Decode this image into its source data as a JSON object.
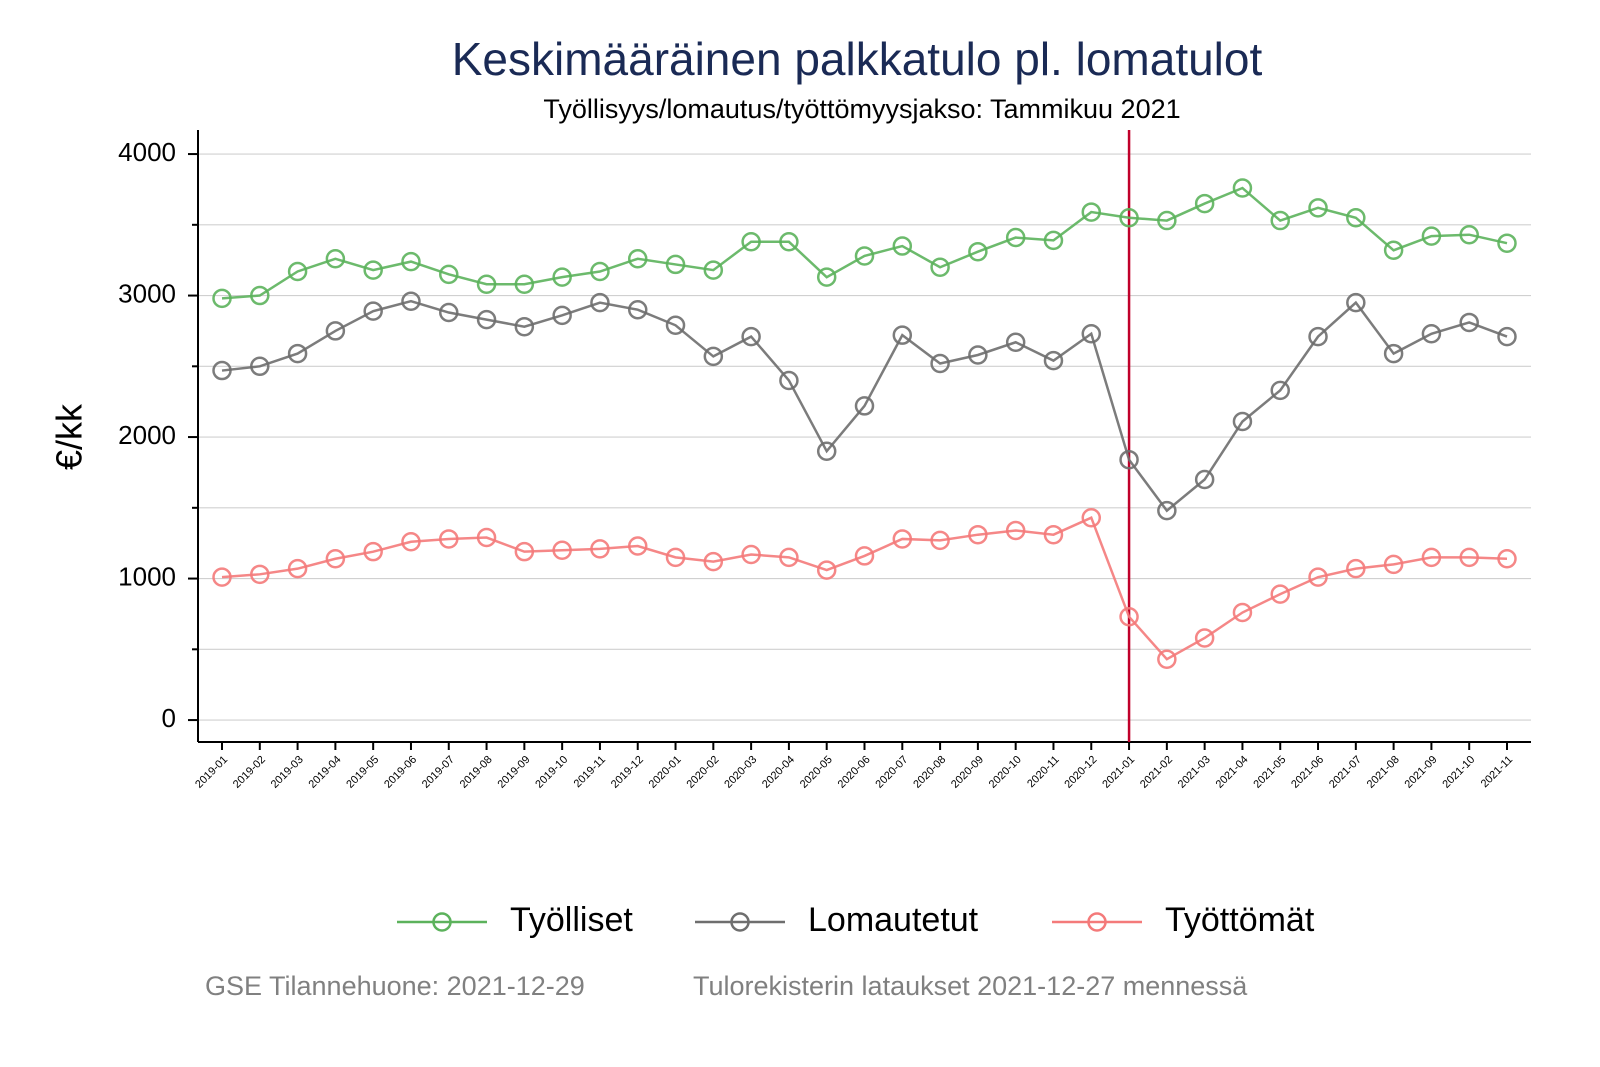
{
  "chart_data": {
    "type": "line",
    "title": "Keskimääräinen palkkatulo pl. lomatulot",
    "subtitle": "Työllisyys/lomautus/työttömyysjakso: Tammikuu 2021",
    "y_label": "€/kk",
    "categories": [
      "2019-01",
      "2019-02",
      "2019-03",
      "2019-04",
      "2019-05",
      "2019-06",
      "2019-07",
      "2019-08",
      "2019-09",
      "2019-10",
      "2019-11",
      "2019-12",
      "2020-01",
      "2020-02",
      "2020-03",
      "2020-04",
      "2020-05",
      "2020-06",
      "2020-07",
      "2020-08",
      "2020-09",
      "2020-10",
      "2020-11",
      "2020-12",
      "2021-01",
      "2021-02",
      "2021-03",
      "2021-04",
      "2021-05",
      "2021-06",
      "2021-07",
      "2021-08",
      "2021-09",
      "2021-10",
      "2021-11"
    ],
    "series": [
      {
        "name": "Työlliset",
        "color": "#5cb25c",
        "values": [
          2980,
          3000,
          3170,
          3260,
          3180,
          3240,
          3150,
          3080,
          3080,
          3130,
          3170,
          3260,
          3220,
          3180,
          3380,
          3380,
          3130,
          3280,
          3350,
          3200,
          3310,
          3410,
          3390,
          3590,
          3550,
          3530,
          3650,
          3760,
          3530,
          3620,
          3550,
          3320,
          3420,
          3430,
          3370
        ]
      },
      {
        "name": "Lomautetut",
        "color": "#6e6e6e",
        "values": [
          2470,
          2500,
          2590,
          2750,
          2890,
          2960,
          2880,
          2830,
          2780,
          2860,
          2950,
          2900,
          2790,
          2570,
          2710,
          2400,
          1900,
          2220,
          2720,
          2520,
          2580,
          2670,
          2540,
          2730,
          1840,
          1480,
          1700,
          2110,
          2330,
          2710,
          2950,
          2590,
          2730,
          2810,
          2710
        ]
      },
      {
        "name": "Työttömät",
        "color": "#f47a7a",
        "values": [
          1010,
          1030,
          1070,
          1140,
          1190,
          1260,
          1280,
          1290,
          1190,
          1200,
          1210,
          1230,
          1150,
          1120,
          1170,
          1150,
          1060,
          1160,
          1280,
          1270,
          1310,
          1340,
          1310,
          1430,
          730,
          430,
          580,
          760,
          890,
          1010,
          1070,
          1100,
          1150,
          1150,
          1140
        ]
      }
    ],
    "ylim": [
      -155,
      4170
    ],
    "yticks": [
      0,
      1000,
      2000,
      3000,
      4000
    ],
    "yminor": [
      500,
      1500,
      2500,
      3500
    ],
    "grid": true,
    "vline": "2021-01",
    "vline_color": "#c0002a",
    "legend": "bottom",
    "footer": [
      "GSE Tilannehuone: 2021-12-29",
      "Tulorekisterin lataukset 2021-12-27 mennessä"
    ]
  }
}
